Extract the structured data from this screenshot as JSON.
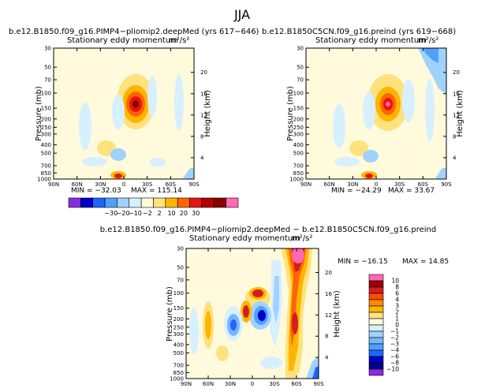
{
  "figure": {
    "season": "JJA",
    "top_left_title": "b.e12.B1850.f09_g16.PIMP4−pliomip2.deepMed  (yrs 617−646)",
    "top_right_title": "b.e12.B1850C5CN.f09_g16.preind  (yrs 619−668)",
    "bottom_title": "b.e12.B1850.f09_g16.PIMP4−pliomip2.deepMed − b.e12.B1850C5CN.f09_g16.preind"
  },
  "chart_data": [
    {
      "type": "heatmap",
      "title": "b.e12.B1850.f09_g16.PIMP4−pliomip2.deepMed  (yrs 617−646)",
      "subtitle": "Stationary eddy momentum",
      "units": "m²/s²",
      "ylabel": "Pressure  (mb)",
      "y2label": "Height  (km)",
      "x_tick_labels": [
        "90N",
        "60N",
        "30N",
        "0",
        "30S",
        "60S",
        "90S"
      ],
      "y_ticks": [
        30,
        50,
        70,
        100,
        150,
        200,
        250,
        300,
        400,
        500,
        700,
        850,
        1000
      ],
      "y2_ticks": [
        4,
        8,
        12,
        16,
        20
      ],
      "min_label": "MIN = −32.03",
      "max_label": "MAX = 115.14",
      "min": -32.03,
      "max": 115.14,
      "contour_levels": [
        -30,
        -20,
        -10,
        -2,
        2,
        10,
        20,
        30
      ]
    },
    {
      "type": "heatmap",
      "title": "b.e12.B1850C5CN.f09_g16.preind  (yrs 619−668)",
      "subtitle": "Stationary eddy momentum",
      "units": "m²/s²",
      "ylabel": "Pressure  (mb)",
      "y2label": "Height  (km)",
      "x_tick_labels": [
        "90N",
        "60N",
        "30N",
        "0",
        "30S",
        "60S",
        "90S"
      ],
      "y_ticks": [
        30,
        50,
        70,
        100,
        150,
        200,
        250,
        300,
        400,
        500,
        700,
        850,
        1000
      ],
      "y2_ticks": [
        4,
        8,
        12,
        16,
        20
      ],
      "min_label": "MIN = −24.29",
      "max_label": "MAX =  33.67",
      "min": -24.29,
      "max": 33.67,
      "contour_levels": [
        -30,
        -20,
        -10,
        -2,
        2,
        10,
        20,
        30
      ]
    },
    {
      "type": "heatmap",
      "title": "b.e12.B1850.f09_g16.PIMP4−pliomip2.deepMed − b.e12.B1850C5CN.f09_g16.preind",
      "subtitle": "Stationary eddy momentum",
      "units": "m²/s²",
      "ylabel": "Pressure  (mb)",
      "y2label": "Height  (km)",
      "x_tick_labels": [
        "90N",
        "60N",
        "30N",
        "0",
        "30S",
        "60S",
        "90S"
      ],
      "y_ticks": [
        30,
        50,
        70,
        100,
        150,
        200,
        250,
        300,
        400,
        500,
        700,
        850,
        1000
      ],
      "y2_ticks": [
        4,
        8,
        12,
        16,
        20
      ],
      "min_label": "MIN = −16.15",
      "max_label": "MAX =  14.85",
      "min": -16.15,
      "max": 14.85,
      "contour_levels": [
        -10,
        -8,
        -6,
        -4,
        -3,
        -2,
        -1,
        0,
        1,
        2,
        3,
        4,
        6,
        8,
        10
      ]
    }
  ],
  "colorbars": {
    "top": {
      "labels": [
        "−30",
        "−20",
        "−10",
        "−2",
        "2",
        "10",
        "20",
        "30"
      ],
      "colors": [
        "#8a2be2",
        "#0000c8",
        "#1e64ff",
        "#50a0ff",
        "#a0d2ff",
        "#d7f0ff",
        "#fffadc",
        "#ffe17d",
        "#ffb400",
        "#ff6400",
        "#e61414",
        "#b40000",
        "#8b0000",
        "#ff69b4"
      ]
    },
    "bottom": {
      "labels": [
        "10",
        "8",
        "6",
        "4",
        "3",
        "2",
        "1",
        "0",
        "−1",
        "−2",
        "−3",
        "−4",
        "−6",
        "−8",
        "−10"
      ],
      "colors": [
        "#ff69b4",
        "#a00000",
        "#d21e1e",
        "#ff4b00",
        "#ff8c00",
        "#ffb400",
        "#ffe17d",
        "#fffadc",
        "#d7f0ff",
        "#a0d2ff",
        "#78b4ff",
        "#50a0ff",
        "#1e64ff",
        "#0000c8",
        "#00008b",
        "#8a2be2"
      ]
    }
  }
}
